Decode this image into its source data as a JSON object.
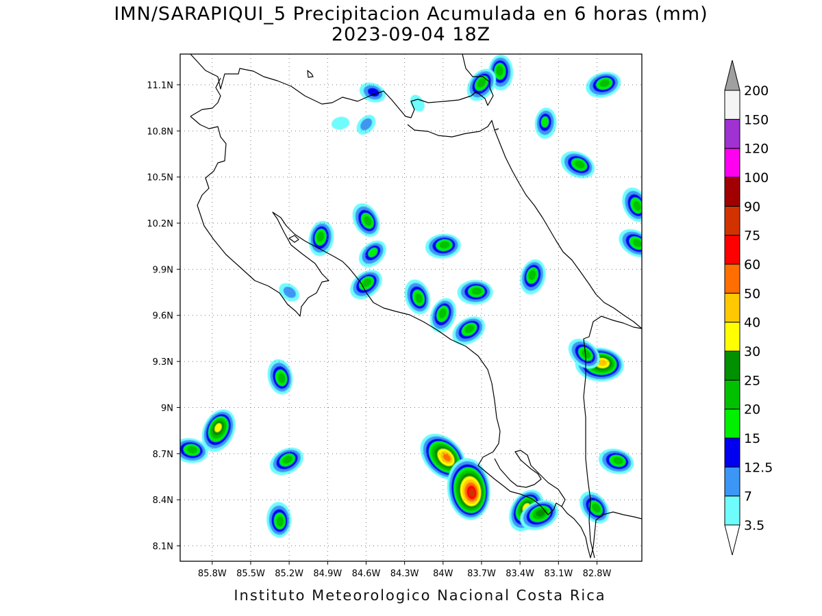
{
  "title": {
    "line1": "IMN/SARAPIQUI_5 Precipitacion Acumulada en 6 horas (mm)",
    "line2": "2023-09-04 18Z"
  },
  "credit": "Instituto Meteorologico Nacional Costa Rica",
  "map": {
    "lon_range": [
      -86.05,
      -82.45
    ],
    "lat_range": [
      8.0,
      11.3
    ],
    "lon_ticks": [
      {
        "value": -85.8,
        "label": "85.8W"
      },
      {
        "value": -85.5,
        "label": "85.5W"
      },
      {
        "value": -85.2,
        "label": "85.2W"
      },
      {
        "value": -84.9,
        "label": "84.9W"
      },
      {
        "value": -84.6,
        "label": "84.6W"
      },
      {
        "value": -84.3,
        "label": "84.3W"
      },
      {
        "value": -84.0,
        "label": "84W"
      },
      {
        "value": -83.7,
        "label": "83.7W"
      },
      {
        "value": -83.4,
        "label": "83.4W"
      },
      {
        "value": -83.1,
        "label": "83.1W"
      },
      {
        "value": -82.8,
        "label": "82.8W"
      }
    ],
    "lat_ticks": [
      {
        "value": 11.1,
        "label": "11.1N"
      },
      {
        "value": 10.8,
        "label": "10.8N"
      },
      {
        "value": 10.5,
        "label": "10.5N"
      },
      {
        "value": 10.2,
        "label": "10.2N"
      },
      {
        "value": 9.9,
        "label": "9.9N"
      },
      {
        "value": 9.6,
        "label": "9.6N"
      },
      {
        "value": 9.3,
        "label": "9.3N"
      },
      {
        "value": 9.0,
        "label": "9N"
      },
      {
        "value": 8.7,
        "label": "8.7N"
      },
      {
        "value": 8.4,
        "label": "8.4N"
      },
      {
        "value": 8.1,
        "label": "8.1N"
      }
    ]
  },
  "colorbar": {
    "labels": [
      "3.5",
      "7",
      "12.5",
      "15",
      "20",
      "25",
      "30",
      "40",
      "50",
      "60",
      "75",
      "90",
      "100",
      "120",
      "150",
      "200"
    ],
    "colors": [
      "#6efcfc",
      "#3c96f5",
      "#0000f0",
      "#00f000",
      "#00c000",
      "#009000",
      "#ffff00",
      "#ffc800",
      "#ff6e00",
      "#ff0000",
      "#d23200",
      "#a00000",
      "#ff00f0",
      "#a032d2",
      "#f5f5f5"
    ],
    "over_color": "#a0a0a0"
  },
  "precip_cells": [
    {
      "lon": -83.55,
      "lat": 11.18,
      "max_mm": 20
    },
    {
      "lon": -83.7,
      "lat": 11.1,
      "max_mm": 20
    },
    {
      "lon": -82.75,
      "lat": 11.1,
      "max_mm": 20
    },
    {
      "lon": -84.55,
      "lat": 11.05,
      "max_mm": 12.5
    },
    {
      "lon": -84.2,
      "lat": 10.98,
      "max_mm": 3.5
    },
    {
      "lon": -83.2,
      "lat": 10.85,
      "max_mm": 15
    },
    {
      "lon": -84.6,
      "lat": 10.84,
      "max_mm": 7
    },
    {
      "lon": -84.8,
      "lat": 10.85,
      "max_mm": 3.5
    },
    {
      "lon": -82.95,
      "lat": 10.58,
      "max_mm": 20
    },
    {
      "lon": -84.6,
      "lat": 10.22,
      "max_mm": 20
    },
    {
      "lon": -84.95,
      "lat": 10.1,
      "max_mm": 20
    },
    {
      "lon": -84.55,
      "lat": 10.0,
      "max_mm": 15
    },
    {
      "lon": -84.0,
      "lat": 10.05,
      "max_mm": 20
    },
    {
      "lon": -82.5,
      "lat": 10.07,
      "max_mm": 20
    },
    {
      "lon": -82.5,
      "lat": 10.32,
      "max_mm": 20
    },
    {
      "lon": -83.3,
      "lat": 9.85,
      "max_mm": 20
    },
    {
      "lon": -84.6,
      "lat": 9.8,
      "max_mm": 20
    },
    {
      "lon": -83.75,
      "lat": 9.75,
      "max_mm": 20
    },
    {
      "lon": -85.2,
      "lat": 9.75,
      "max_mm": 7
    },
    {
      "lon": -84.2,
      "lat": 9.72,
      "max_mm": 20
    },
    {
      "lon": -84.0,
      "lat": 9.6,
      "max_mm": 20
    },
    {
      "lon": -83.8,
      "lat": 9.5,
      "max_mm": 20
    },
    {
      "lon": -82.78,
      "lat": 9.28,
      "max_mm": 40
    },
    {
      "lon": -82.9,
      "lat": 9.35,
      "max_mm": 20
    },
    {
      "lon": -85.27,
      "lat": 9.2,
      "max_mm": 20
    },
    {
      "lon": -85.75,
      "lat": 8.85,
      "max_mm": 30
    },
    {
      "lon": -85.22,
      "lat": 8.65,
      "max_mm": 20
    },
    {
      "lon": -85.97,
      "lat": 8.72,
      "max_mm": 20
    },
    {
      "lon": -84.0,
      "lat": 8.68,
      "max_mm": 50
    },
    {
      "lon": -83.8,
      "lat": 8.47,
      "max_mm": 75
    },
    {
      "lon": -83.35,
      "lat": 8.33,
      "max_mm": 30
    },
    {
      "lon": -83.25,
      "lat": 8.3,
      "max_mm": 25
    },
    {
      "lon": -82.65,
      "lat": 8.65,
      "max_mm": 20
    },
    {
      "lon": -82.82,
      "lat": 8.35,
      "max_mm": 20
    },
    {
      "lon": -85.28,
      "lat": 8.27,
      "max_mm": 20
    }
  ]
}
